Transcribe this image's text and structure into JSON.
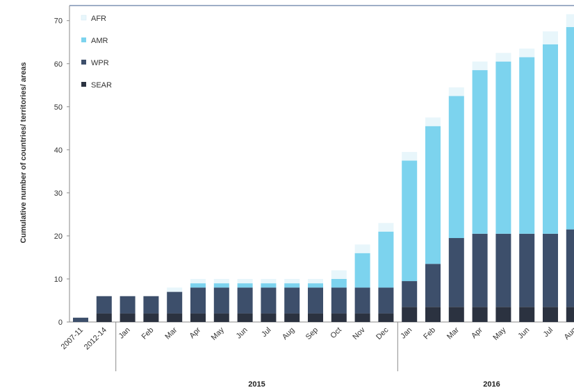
{
  "chart_data": {
    "type": "bar",
    "stacked": true,
    "ylabel": "Cumulative number of countries/ territories/ areas",
    "ylim": [
      0,
      70
    ],
    "yticks": [
      0,
      10,
      20,
      30,
      40,
      50,
      60,
      70
    ],
    "grid": false,
    "legend_position": "top-left",
    "categories": [
      "2007-11",
      "2012-14",
      "Jan",
      "Feb",
      "Mar",
      "Apr",
      "May",
      "Jun",
      "Jul",
      "Aug",
      "Sep",
      "Oct",
      "Nov",
      "Dec",
      "Jan",
      "Feb",
      "Mar",
      "Apr",
      "May",
      "Jun",
      "Jul",
      "Aug"
    ],
    "groups": [
      {
        "label": "2015",
        "from": 2,
        "to": 13
      },
      {
        "label": "2016",
        "from": 14,
        "to": 21
      }
    ],
    "series": [
      {
        "name": "SEAR",
        "color": "#2b3240",
        "values": [
          0,
          2,
          2,
          2,
          2,
          2,
          2,
          2,
          2,
          2,
          2,
          2,
          2,
          2,
          3.5,
          3.5,
          3.5,
          3.5,
          3.5,
          3.5,
          3.5,
          3.5
        ]
      },
      {
        "name": "WPR",
        "color": "#3d4f6b",
        "values": [
          1,
          4,
          4,
          4,
          5,
          6,
          6,
          6,
          6,
          6,
          6,
          6,
          6,
          6,
          6,
          10,
          16,
          17,
          17,
          17,
          17,
          18
        ]
      },
      {
        "name": "AMR",
        "color": "#7cd3ee",
        "values": [
          0,
          0,
          0,
          0,
          0,
          1,
          1,
          1,
          1,
          1,
          1,
          2,
          8,
          13,
          28,
          32,
          33,
          38,
          40,
          41,
          44,
          47
        ]
      },
      {
        "name": "AFR",
        "color": "#e8f6fb",
        "values": [
          0,
          0,
          0,
          0,
          1,
          1,
          1,
          1,
          1,
          1,
          1,
          2,
          2,
          2,
          2,
          2,
          2,
          2,
          2,
          2,
          3,
          3
        ]
      }
    ],
    "legend_order": [
      "AFR",
      "AMR",
      "WPR",
      "SEAR"
    ]
  }
}
